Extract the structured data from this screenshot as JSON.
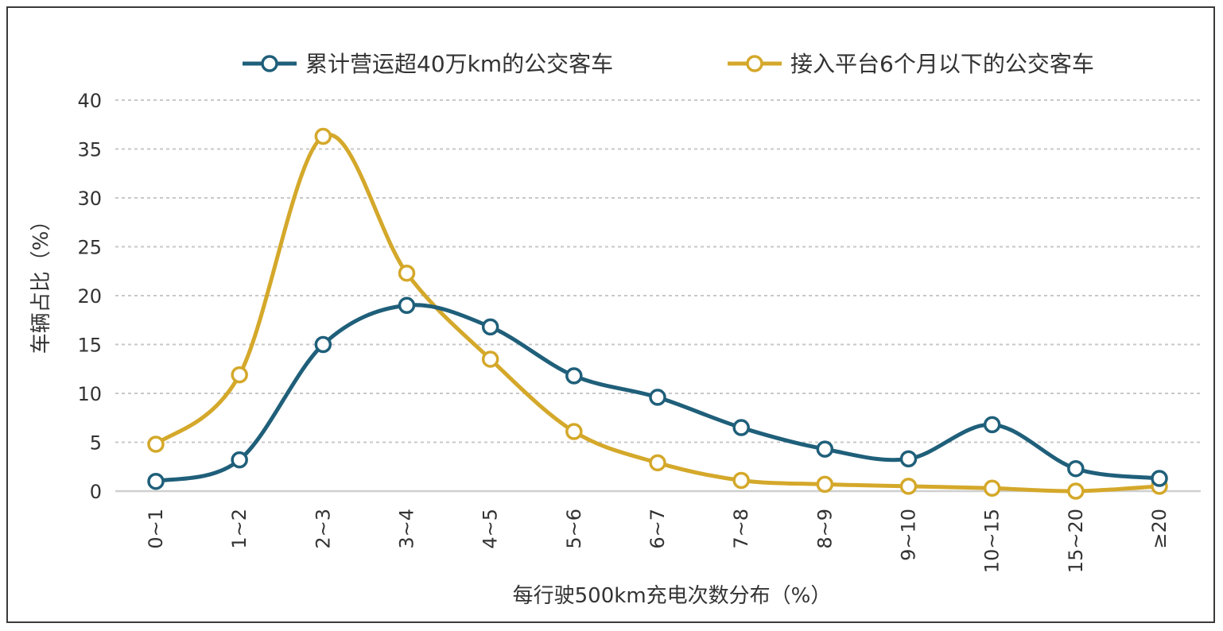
{
  "chart_data": {
    "type": "line",
    "title": "",
    "xlabel": "每行驶500km充电次数分布（%）",
    "ylabel": "车辆占比（%）",
    "ylim": [
      0,
      40
    ],
    "yticks": [
      0,
      5,
      10,
      15,
      20,
      25,
      30,
      35,
      40
    ],
    "grid": true,
    "legend_position": "top",
    "categories": [
      "0~1",
      "1~2",
      "2~3",
      "3~4",
      "4~5",
      "5~6",
      "6~7",
      "7~8",
      "8~9",
      "9~10",
      "10~15",
      "15~20",
      "≥20"
    ],
    "series": [
      {
        "name": "累计营运超40万km的公交客车",
        "color": "#1f5f7a",
        "values": [
          1.0,
          3.2,
          15.0,
          19.0,
          16.8,
          11.8,
          9.6,
          6.5,
          4.3,
          3.3,
          6.8,
          2.3,
          1.3
        ]
      },
      {
        "name": "接入平台6个月以下的公交客车",
        "color": "#d4a82a",
        "values": [
          4.8,
          11.9,
          36.3,
          22.3,
          13.5,
          6.1,
          2.9,
          1.1,
          0.7,
          0.5,
          0.3,
          0.0,
          0.5
        ]
      }
    ]
  }
}
